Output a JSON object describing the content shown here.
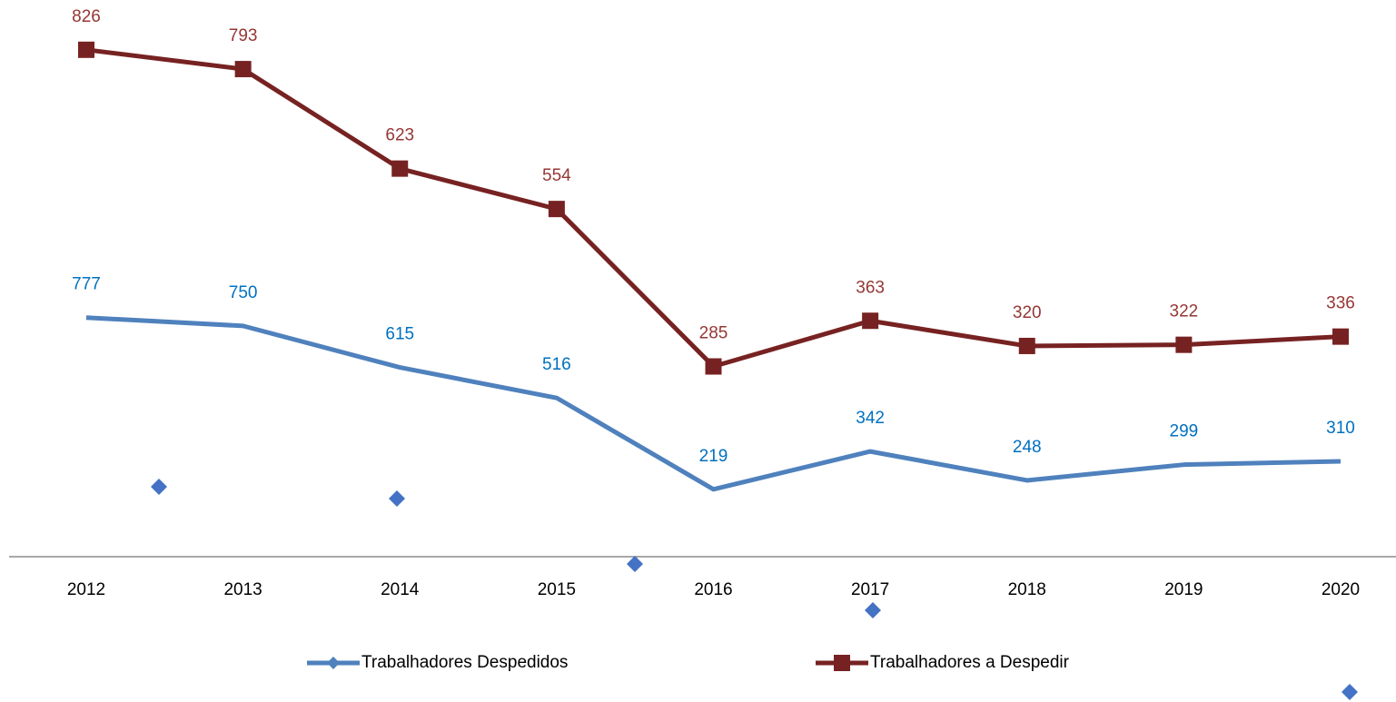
{
  "chart_data": {
    "type": "line",
    "categories": [
      "2012",
      "2013",
      "2014",
      "2015",
      "2016",
      "2017",
      "2018",
      "2019",
      "2020"
    ],
    "series": [
      {
        "name": "Trabalhadores Despedidos",
        "color": "#4f81bd",
        "label_color": "#0070c0",
        "marker": "diamond",
        "values": [
          777,
          750,
          615,
          516,
          219,
          342,
          248,
          299,
          310
        ]
      },
      {
        "name": "Trabalhadores a Despedir",
        "color": "#772222",
        "label_color": "#953735",
        "marker": "square",
        "axis": "y2",
        "values": [
          826,
          793,
          623,
          554,
          285,
          363,
          320,
          322,
          336
        ]
      }
    ],
    "ylim": [
      0,
      1750
    ],
    "y2lim": [
      -40,
      880
    ],
    "legend": "bottom"
  }
}
